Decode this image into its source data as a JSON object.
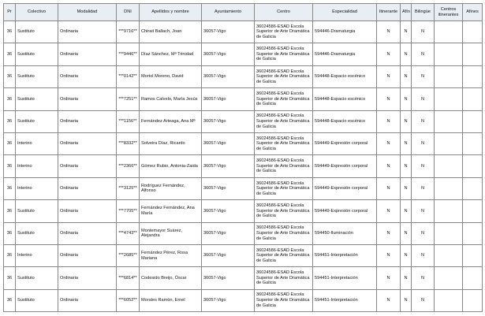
{
  "headers": [
    "Pr",
    "Colectivo",
    "Modalidad",
    "DNI",
    "Apellidos y nombre",
    "Ayuntamiento",
    "Centro",
    "Especialidad",
    "Itinerante",
    "Afín",
    "Bilingüe",
    "Centros itinerantes",
    "Afines"
  ],
  "rows": [
    [
      "36",
      "Sustituto",
      "Ordinaria",
      "***9716**",
      "Chirait Ballach, Joan",
      "36057-Vigo",
      "36024586-ESAD Escola Superior de Arte Dramática de Galicia",
      "594446-Dramaturgia",
      "N",
      "N",
      "N",
      "",
      ""
    ],
    [
      "36",
      "Sustituto",
      "Ordinaria",
      "***9446**",
      "Díaz Sánchez, Mª Trinidad",
      "36057-Vigo",
      "36024586-ESAD Escola Superior de Arte Dramática de Galicia",
      "594446-Dramaturgia",
      "N",
      "N",
      "N",
      "",
      ""
    ],
    [
      "36",
      "Sustituto",
      "Ordinaria",
      "***0142**",
      "Mortol Moreno, David",
      "36057-Vigo",
      "36024586-ESAD Escola Superior de Arte Dramática de Galicia",
      "594448-Espacio escénico",
      "N",
      "N",
      "N",
      "",
      ""
    ],
    [
      "36",
      "Sustituto",
      "Ordinaria",
      "***7251**",
      "Ramos Calvelo, María Jesús",
      "36057-Vigo",
      "36024586-ESAD Escola Superior de Arte Dramática de Galicia",
      "594448-Espacio escénico",
      "N",
      "N",
      "N",
      "",
      ""
    ],
    [
      "36",
      "Sustituto",
      "Ordinaria",
      "***1156**",
      "Fernández Arteaga, Ana Mª",
      "36057-Vigo",
      "36024586-ESAD Escola Superior de Arte Dramática de Galicia",
      "594448-Espacio escénico",
      "N",
      "N",
      "N",
      "",
      ""
    ],
    [
      "36",
      "Interino",
      "Ordinaria",
      "***8332**",
      "Solveira Díaz, Ricardo",
      "36057-Vigo",
      "36024586-ESAD Escola Superior de Arte Dramática de Galicia",
      "594449-Expresión corporal",
      "N",
      "N",
      "N",
      "",
      ""
    ],
    [
      "36",
      "Interino",
      "Ordinaria",
      "***2366**",
      "Gómez Rubio, Antonia-Zaida",
      "36057-Vigo",
      "36024586-ESAD Escola Superior de Arte Dramática de Galicia",
      "594449-Expresión corporal",
      "N",
      "N",
      "N",
      "",
      ""
    ],
    [
      "36",
      "Interino",
      "Ordinaria",
      "***3125**",
      "Rodríguez Fernández, Alfonso",
      "36057-Vigo",
      "36024586-ESAD Escola Superior de Arte Dramática de Galicia",
      "594449-Expresión corporal",
      "N",
      "N",
      "N",
      "",
      ""
    ],
    [
      "36",
      "Sustituto",
      "Ordinaria",
      "***7705**",
      "Fernández Fernández, Ana María",
      "36057-Vigo",
      "36024586-ESAD Escola Superior de Arte Dramática de Galicia",
      "594449-Expresión corporal",
      "N",
      "N",
      "N",
      "",
      ""
    ],
    [
      "36",
      "Sustituto",
      "Ordinaria",
      "***4743**",
      "Montemayor Suárez, Alejandra",
      "36057-Vigo",
      "36024586-ESAD Escola Superior de Arte Dramática de Galicia",
      "594450-Iluminación",
      "N",
      "N",
      "N",
      "",
      ""
    ],
    [
      "36",
      "Interino",
      "Ordinaria",
      "***2685**",
      "Fernández Pérez, Rosa Mariana",
      "36057-Vigo",
      "36024586-ESAD Escola Superior de Arte Dramática de Galicia",
      "594451-Interpretación",
      "N",
      "N",
      "N",
      "",
      ""
    ],
    [
      "36",
      "Sustituto",
      "Ordinaria",
      "***6814**",
      "Codesido Breijo, Óscar",
      "36057-Vigo",
      "36024586-ESAD Escola Superior de Arte Dramática de Galicia",
      "594451-Interpretación",
      "N",
      "N",
      "N",
      "",
      ""
    ],
    [
      "36",
      "Sustituto",
      "Ordinaria",
      "***6052**",
      "Morales Ramón, Ernel",
      "36057-Vigo",
      "36024586-ESAD Escola Superior de Arte Dramática de Galicia",
      "594451-Interpretación",
      "N",
      "N",
      "N",
      "",
      ""
    ]
  ]
}
